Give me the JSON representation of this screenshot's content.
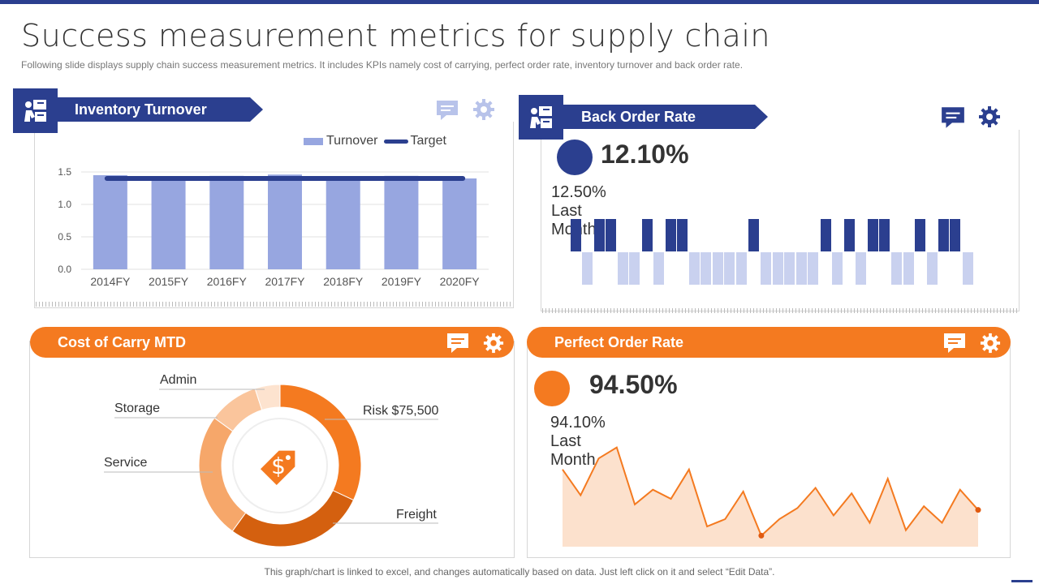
{
  "header": {
    "title": "Success measurement metrics for supply chain",
    "subtitle": "Following slide displays supply chain success measurement metrics. It includes KPIs namely cost of carrying, perfect order rate, inventory  turnover  and back order rate."
  },
  "footer": {
    "note": "This graph/chart is linked to excel, and changes automatically based on data. Just left click on it and select “Edit Data”."
  },
  "colors": {
    "blue": "#2b3f8f",
    "blue_light": "#97a6e0",
    "orange": "#f47a20",
    "orange_light": "#fcdcc4"
  },
  "inventory": {
    "title": "Inventory Turnover",
    "icons": [
      "chat-icon",
      "gear-icon"
    ],
    "legend": {
      "turnover": "Turnover",
      "target": "Target"
    },
    "chart_data": {
      "type": "bar",
      "categories": [
        "2014FY",
        "2015FY",
        "2016FY",
        "2017FY",
        "2018FY",
        "2019FY",
        "2020FY"
      ],
      "series": [
        {
          "name": "Turnover",
          "values": [
            1.45,
            1.4,
            1.44,
            1.46,
            1.41,
            1.44,
            1.4
          ]
        },
        {
          "name": "Target",
          "values": [
            1.4,
            1.4,
            1.4,
            1.4,
            1.4,
            1.4,
            1.4
          ]
        }
      ],
      "yticks": [
        "0.0",
        "0.5",
        "1.0",
        "1.5"
      ],
      "ylim": [
        0,
        1.5
      ]
    }
  },
  "back_order": {
    "title": "Back Order Rate",
    "value": "12.10%",
    "last_month": "12.50% Last Month",
    "icons": [
      "chat-icon",
      "gear-icon"
    ]
  },
  "cost_carry": {
    "title": "Cost of Carry MTD",
    "icons": [
      "chat-icon",
      "gear-icon"
    ],
    "labels": {
      "admin": "Admin",
      "storage": "Storage",
      "service": "Service",
      "risk": "Risk $75,500",
      "freight": "Freight"
    },
    "chart_data": {
      "type": "pie",
      "categories": [
        "Risk",
        "Freight",
        "Service",
        "Storage",
        "Admin"
      ],
      "values": [
        32,
        28,
        25,
        10,
        5
      ]
    }
  },
  "perfect_order": {
    "title": "Perfect Order Rate",
    "value": "94.50%",
    "last_month": "94.10% Last Month",
    "icons": [
      "chat-icon",
      "gear-icon"
    ],
    "chart_data": {
      "type": "area",
      "values": [
        82,
        68,
        88,
        94,
        63,
        71,
        66,
        82,
        51,
        55,
        70,
        46,
        55,
        61,
        72,
        57,
        69,
        53,
        77,
        49,
        62,
        53,
        71,
        60
      ]
    }
  }
}
